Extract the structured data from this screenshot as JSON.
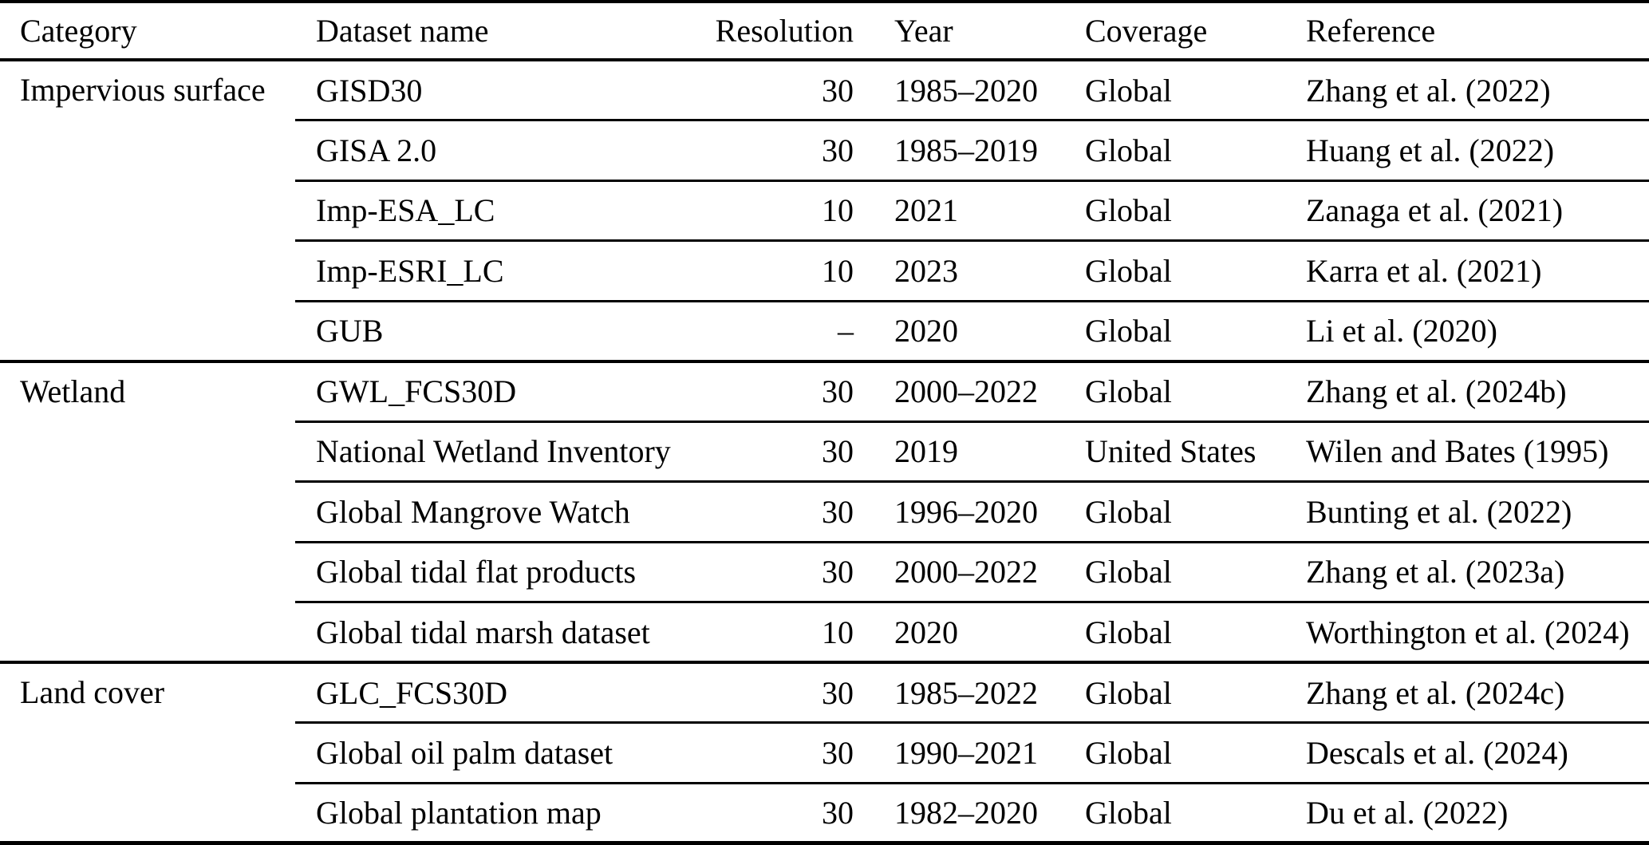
{
  "table": {
    "columns": [
      "Category",
      "Dataset name",
      "Resolution",
      "Year",
      "Coverage",
      "Reference"
    ],
    "groups": [
      {
        "category": "Impervious surface",
        "rows": [
          {
            "name": "GISD30",
            "resolution": "30",
            "year": "1985–2020",
            "coverage": "Global",
            "reference": "Zhang et al. (2022)"
          },
          {
            "name": "GISA 2.0",
            "resolution": "30",
            "year": "1985–2019",
            "coverage": "Global",
            "reference": "Huang et al. (2022)"
          },
          {
            "name": "Imp-ESA_LC",
            "resolution": "10",
            "year": "2021",
            "coverage": "Global",
            "reference": "Zanaga et al. (2021)"
          },
          {
            "name": "Imp-ESRI_LC",
            "resolution": "10",
            "year": "2023",
            "coverage": "Global",
            "reference": "Karra et al. (2021)"
          },
          {
            "name": "GUB",
            "resolution": "–",
            "year": "2020",
            "coverage": "Global",
            "reference": "Li et al. (2020)"
          }
        ]
      },
      {
        "category": "Wetland",
        "rows": [
          {
            "name": "GWL_FCS30D",
            "resolution": "30",
            "year": "2000–2022",
            "coverage": "Global",
            "reference": "Zhang et al. (2024b)"
          },
          {
            "name": "National Wetland Inventory",
            "resolution": "30",
            "year": "2019",
            "coverage": "United States",
            "reference": "Wilen and Bates (1995)"
          },
          {
            "name": "Global Mangrove Watch",
            "resolution": "30",
            "year": "1996–2020",
            "coverage": "Global",
            "reference": "Bunting et al. (2022)"
          },
          {
            "name": "Global tidal flat products",
            "resolution": "30",
            "year": "2000–2022",
            "coverage": "Global",
            "reference": "Zhang et al. (2023a)"
          },
          {
            "name": "Global tidal marsh dataset",
            "resolution": "10",
            "year": "2020",
            "coverage": "Global",
            "reference": "Worthington et al. (2024)"
          }
        ]
      },
      {
        "category": "Land cover",
        "rows": [
          {
            "name": "GLC_FCS30D",
            "resolution": "30",
            "year": "1985–2022",
            "coverage": "Global",
            "reference": "Zhang et al. (2024c)"
          },
          {
            "name": "Global oil palm dataset",
            "resolution": "30",
            "year": "1990–2021",
            "coverage": "Global",
            "reference": "Descals et al. (2024)"
          },
          {
            "name": "Global plantation map",
            "resolution": "30",
            "year": "1982–2020",
            "coverage": "Global",
            "reference": "Du et al. (2022)"
          }
        ]
      }
    ]
  }
}
